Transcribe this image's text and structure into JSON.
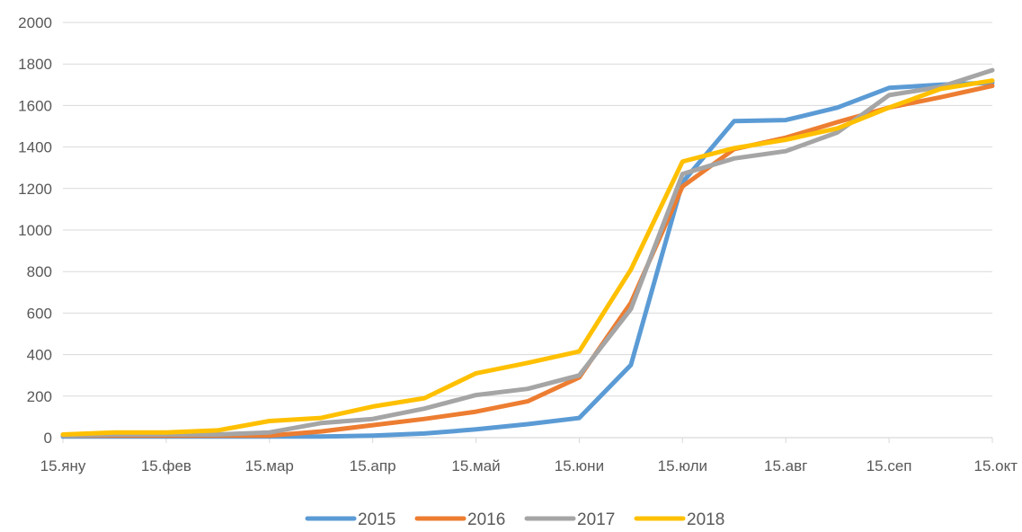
{
  "chart_data": {
    "type": "line",
    "title": "",
    "xlabel": "",
    "ylabel": "",
    "ylim": [
      0,
      2000
    ],
    "y_ticks": [
      0,
      200,
      400,
      600,
      800,
      1000,
      1200,
      1400,
      1600,
      1800,
      2000
    ],
    "x_tick_labels": [
      "15.яну",
      "15.фев",
      "15.мар",
      "15.апр",
      "15.май",
      "15.юни",
      "15.юли",
      "15.авг",
      "15.сеп",
      "15.окт"
    ],
    "grid": true,
    "legend_position": "bottom",
    "colors": {
      "2015": "#5b9bd5",
      "2016": "#ed7d31",
      "2017": "#a5a5a5",
      "2018": "#ffc000",
      "grid": "#d9d9d9",
      "text": "#595959"
    },
    "series": [
      {
        "name": "2015",
        "x": [
          0,
          0.5,
          1,
          1.5,
          2,
          2.5,
          3,
          3.5,
          4,
          4.5,
          5,
          5.5,
          6,
          6.5,
          7,
          7.5,
          8,
          8.5,
          9
        ],
        "values": [
          5,
          5,
          5,
          5,
          5,
          5,
          10,
          20,
          40,
          65,
          95,
          350,
          1230,
          1525,
          1530,
          1590,
          1685,
          1700,
          1710
        ]
      },
      {
        "name": "2016",
        "x": [
          0,
          0.5,
          1,
          1.5,
          2,
          2.5,
          3,
          3.5,
          4,
          4.5,
          5,
          5.5,
          6,
          6.5,
          7,
          7.5,
          8,
          8.5,
          9
        ],
        "values": [
          10,
          10,
          10,
          10,
          10,
          30,
          60,
          90,
          125,
          175,
          290,
          650,
          1210,
          1390,
          1445,
          1520,
          1590,
          1640,
          1695
        ]
      },
      {
        "name": "2017",
        "x": [
          0,
          0.5,
          1,
          1.5,
          2,
          2.5,
          3,
          3.5,
          4,
          4.5,
          5,
          5.5,
          6,
          6.5,
          7,
          7.5,
          8,
          8.5,
          9
        ],
        "values": [
          10,
          15,
          15,
          15,
          25,
          70,
          90,
          140,
          205,
          235,
          300,
          620,
          1270,
          1345,
          1380,
          1470,
          1650,
          1690,
          1770
        ]
      },
      {
        "name": "2018",
        "x": [
          0,
          0.5,
          1,
          1.5,
          2,
          2.5,
          3,
          3.5,
          4,
          4.5,
          5,
          5.5,
          6,
          6.5,
          7,
          7.5,
          8,
          8.5,
          9
        ],
        "values": [
          15,
          25,
          25,
          35,
          80,
          95,
          150,
          190,
          310,
          360,
          415,
          810,
          1330,
          1395,
          1435,
          1490,
          1590,
          1680,
          1720
        ]
      }
    ]
  }
}
